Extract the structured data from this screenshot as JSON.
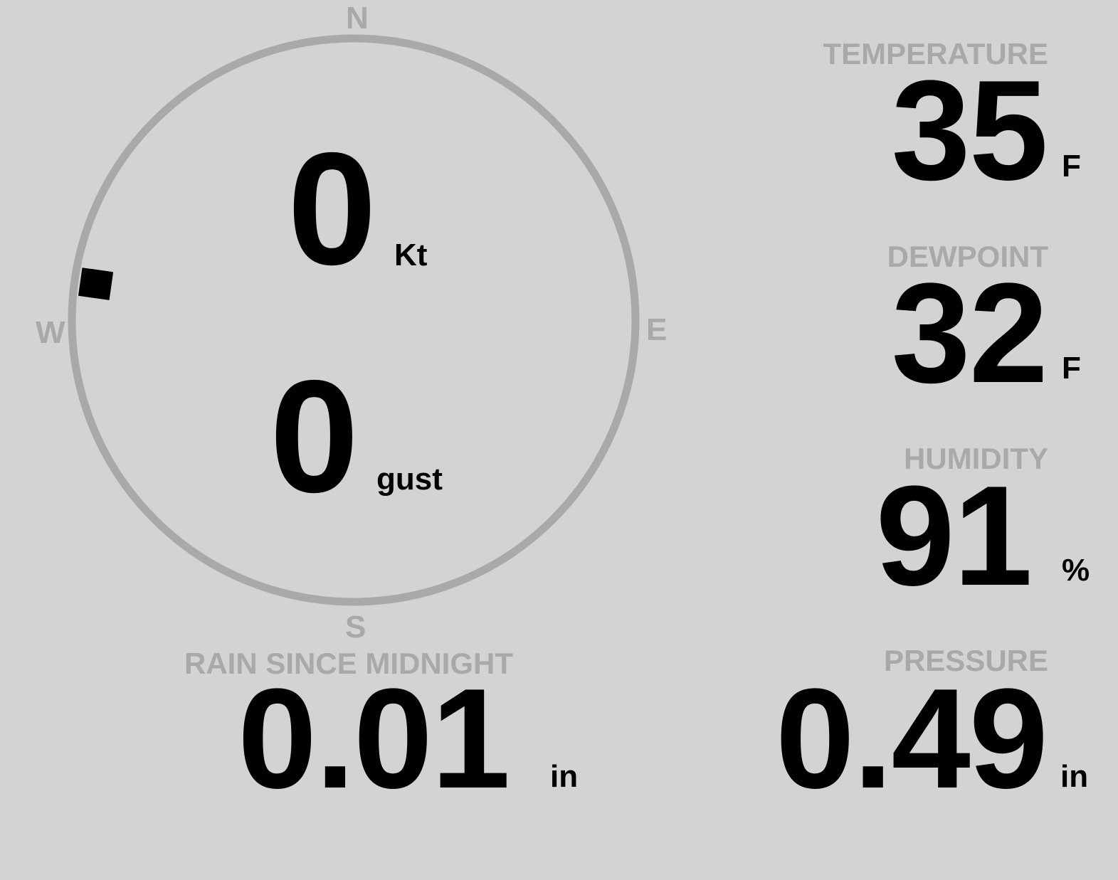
{
  "colors": {
    "background": "#d3d3d3",
    "label": "#a9a9a9",
    "value": "#000000"
  },
  "compass": {
    "north": "N",
    "south": "S",
    "east": "E",
    "west": "W",
    "wind_direction_deg": 278
  },
  "wind": {
    "speed": "0",
    "speed_unit": "Kt",
    "gust": "0",
    "gust_unit": "gust"
  },
  "temperature": {
    "label": "TEMPERATURE",
    "value": "35",
    "unit": "F"
  },
  "dewpoint": {
    "label": "DEWPOINT",
    "value": "32",
    "unit": "F"
  },
  "humidity": {
    "label": "HUMIDITY",
    "value": "91",
    "unit": "%"
  },
  "pressure": {
    "label": "PRESSURE",
    "value": "0.49",
    "unit": "in"
  },
  "rain": {
    "label": "RAIN SINCE MIDNIGHT",
    "value": "0.01",
    "unit": "in"
  }
}
